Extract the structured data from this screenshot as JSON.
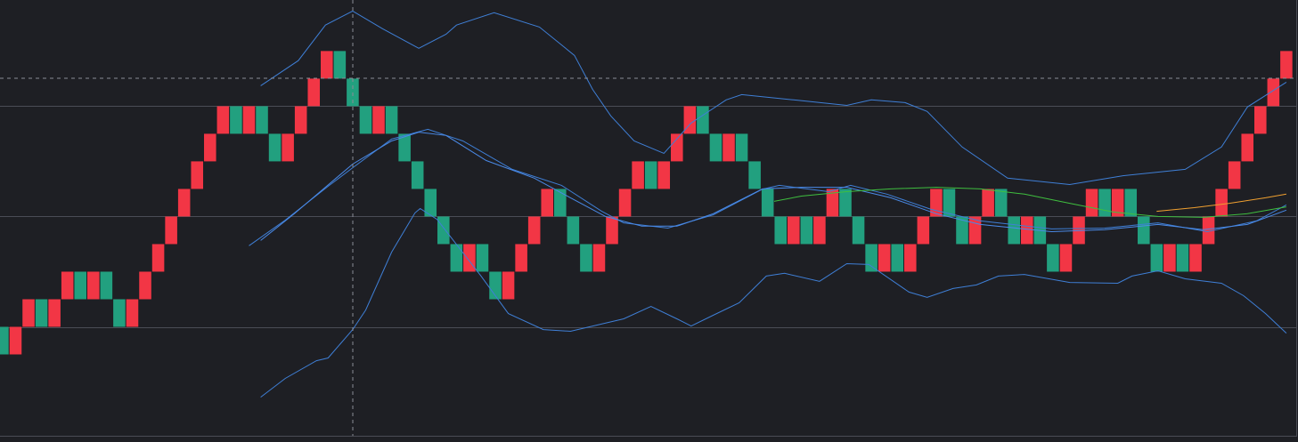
{
  "chart_data": {
    "type": "renko",
    "xlim": [
      -0.2,
      99.9
    ],
    "ylim": [
      -3.95,
      11.85
    ],
    "yticks": [
      0,
      4,
      8
    ],
    "grid": true,
    "up_color": "#f23645",
    "down_color": "#22a07f",
    "open": [
      0,
      -1,
      0,
      1,
      0,
      1,
      2,
      1,
      2,
      1,
      0,
      1,
      2,
      3,
      4,
      5,
      6,
      7,
      8,
      7,
      8,
      7,
      6,
      7,
      8,
      9,
      10,
      9,
      8,
      7,
      8,
      7,
      6,
      5,
      4,
      3,
      2,
      3,
      2,
      1,
      2,
      3,
      4,
      5,
      4,
      3,
      2,
      3,
      4,
      5,
      6,
      5,
      6,
      7,
      8,
      7,
      6,
      7,
      6,
      5,
      4,
      3,
      4,
      3,
      4,
      5,
      4,
      3,
      2,
      3,
      2,
      3,
      4,
      5,
      4,
      3,
      4,
      5,
      4,
      3,
      4,
      3,
      2,
      3,
      4,
      5,
      4,
      5,
      4,
      3,
      2,
      3,
      2,
      3,
      4,
      5,
      6,
      7,
      8,
      9
    ],
    "close": [
      -1,
      0,
      1,
      0,
      1,
      2,
      1,
      2,
      1,
      0,
      1,
      2,
      3,
      4,
      5,
      6,
      7,
      8,
      7,
      8,
      7,
      6,
      7,
      8,
      9,
      10,
      9,
      8,
      7,
      8,
      7,
      6,
      5,
      4,
      3,
      2,
      3,
      2,
      1,
      2,
      3,
      4,
      5,
      4,
      3,
      2,
      3,
      4,
      5,
      6,
      5,
      6,
      7,
      8,
      7,
      6,
      7,
      6,
      5,
      4,
      3,
      4,
      3,
      4,
      5,
      4,
      3,
      2,
      3,
      2,
      3,
      4,
      5,
      4,
      3,
      4,
      5,
      4,
      3,
      4,
      3,
      2,
      3,
      4,
      5,
      4,
      5,
      4,
      3,
      2,
      3,
      2,
      3,
      4,
      5,
      6,
      7,
      8,
      9,
      10
    ],
    "lines": [
      {
        "color": "#3f7fd6",
        "x": [
          19.9,
          22.8,
          24.9,
          27.0,
          29.3,
          32.1,
          34.2,
          35.0,
          37.9,
          41.4,
          44.1,
          45.5,
          46.9,
          48.7,
          51.0,
          53.1,
          55.8,
          57.0,
          61.0,
          65.1,
          67.0,
          69.6,
          71.3,
          74.0,
          77.5,
          82.3,
          86.4,
          91.2,
          94.0,
          96.0,
          99.0
        ],
        "values": [
          8.74,
          9.65,
          10.94,
          11.45,
          10.81,
          10.1,
          10.61,
          10.94,
          11.39,
          10.87,
          9.84,
          8.61,
          7.65,
          6.74,
          6.29,
          7.39,
          8.23,
          8.42,
          8.23,
          8.03,
          8.23,
          8.13,
          7.81,
          6.52,
          5.39,
          5.16,
          5.48,
          5.71,
          6.52,
          7.97,
          8.87
        ]
      },
      {
        "color": "#3f7fd6",
        "x": [
          19.9,
          21.8,
          24.2,
          25.1,
          27.0,
          28.0,
          30.0,
          31.8,
          32.2,
          33.5,
          36.9,
          39.0,
          41.7,
          43.8,
          47.9,
          50.0,
          52.0,
          53.1,
          54.8,
          56.8,
          58.9,
          60.3,
          63.0,
          65.1,
          66.8,
          69.9,
          71.3,
          73.3,
          75.1,
          76.8,
          78.8,
          82.3,
          86.0,
          87.1,
          89.1,
          91.2,
          94.0,
          95.7,
          97.4,
          99.0
        ],
        "values": [
          -2.55,
          -1.87,
          -1.23,
          -1.13,
          -0.1,
          0.61,
          2.71,
          4.13,
          4.29,
          3.9,
          1.84,
          0.48,
          -0.1,
          -0.16,
          0.29,
          0.74,
          0.29,
          0.03,
          0.42,
          0.87,
          1.84,
          1.94,
          1.65,
          2.29,
          2.26,
          1.26,
          1.07,
          1.39,
          1.52,
          1.84,
          1.9,
          1.61,
          1.58,
          1.84,
          2.03,
          1.74,
          1.58,
          1.13,
          0.48,
          -0.23
        ]
      },
      {
        "color": "#3f7fd6",
        "x": [
          19.0,
          21.8,
          25.2,
          27.0,
          30.0,
          32.8,
          35.5,
          39.3,
          43.1,
          46.2,
          47.9,
          51.3,
          54.8,
          58.6,
          59.9,
          63.7,
          65.4,
          68.2,
          71.6,
          75.4,
          80.9,
          85.0,
          89.1,
          92.9,
          96.7,
          99.0
        ],
        "values": [
          2.94,
          3.87,
          5.13,
          5.77,
          6.81,
          7.16,
          6.74,
          5.71,
          5.13,
          4.19,
          3.77,
          3.58,
          4.06,
          4.99,
          5.13,
          4.9,
          5.13,
          4.81,
          4.26,
          3.84,
          3.55,
          3.58,
          3.77,
          3.45,
          3.84,
          4.42
        ]
      },
      {
        "color": "#4a8ae8",
        "x": [
          19.9,
          22.5,
          27.0,
          30.0,
          32.1,
          34.2,
          37.3,
          41.0,
          43.8,
          46.5,
          49.3,
          52.0,
          54.8,
          58.6,
          61.6,
          65.1,
          68.5,
          72.0,
          75.4,
          80.9,
          85.0,
          89.1,
          92.6,
          96.0,
          99.0
        ],
        "values": [
          3.13,
          4.1,
          5.9,
          6.74,
          7.06,
          6.94,
          6.03,
          5.39,
          4.68,
          4.0,
          3.65,
          3.65,
          4.1,
          5.0,
          5.06,
          5.06,
          4.68,
          4.1,
          3.71,
          3.45,
          3.52,
          3.71,
          3.52,
          3.71,
          4.23
        ]
      },
      {
        "color": "#3fbf3f",
        "x": [
          59.5,
          61.6,
          65.1,
          68.5,
          72.0,
          75.4,
          78.8,
          82.3,
          85.7,
          89.1,
          92.6,
          96.0,
          99.0
        ],
        "values": [
          4.55,
          4.74,
          4.9,
          5.0,
          5.06,
          5.0,
          4.81,
          4.48,
          4.16,
          4.0,
          3.97,
          4.1,
          4.35
        ]
      },
      {
        "color": "#f0a030",
        "x": [
          89.0,
          91.9,
          94.6,
          97.4,
          99.0
        ],
        "values": [
          4.19,
          4.32,
          4.48,
          4.68,
          4.81
        ]
      }
    ]
  }
}
